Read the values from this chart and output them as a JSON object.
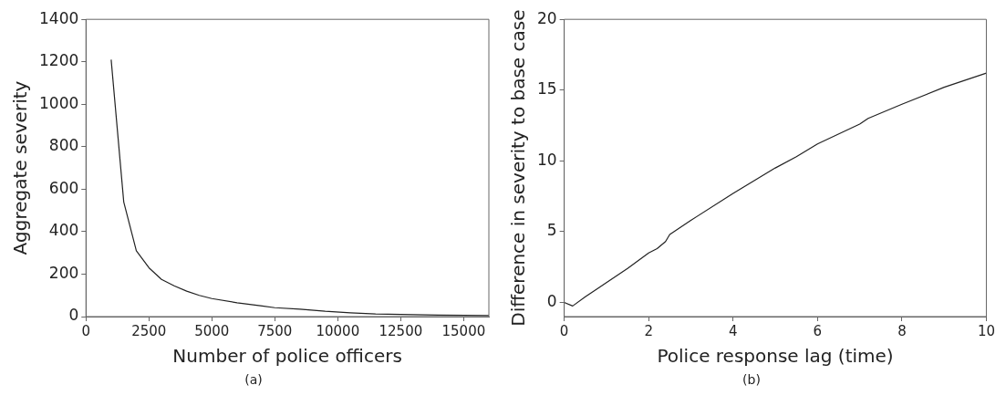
{
  "chart_data": [
    {
      "type": "line",
      "xlabel": "Number of police officers",
      "ylabel": "Aggregate severity",
      "annotations": [
        "(a)"
      ],
      "xlim": [
        0,
        16000
      ],
      "ylim": [
        0,
        1400
      ],
      "xticks": [
        0,
        2500,
        5000,
        7500,
        10000,
        12500,
        15000
      ],
      "yticks": [
        0,
        200,
        400,
        600,
        800,
        1000,
        1200,
        1400
      ],
      "grid": false,
      "legend": false,
      "series": [
        {
          "color": "#222222",
          "x": [
            1000,
            1500,
            2000,
            2500,
            3000,
            3500,
            4000,
            4500,
            5000,
            6000,
            7000,
            7500,
            8500,
            9500,
            10500,
            11500,
            12500,
            14000,
            16000
          ],
          "values": [
            1210,
            540,
            310,
            230,
            175,
            145,
            120,
            100,
            85,
            65,
            50,
            42,
            35,
            25,
            18,
            12,
            10,
            7,
            5
          ]
        }
      ]
    },
    {
      "type": "line",
      "xlabel": "Police response lag (time)",
      "ylabel": "Difference in severity to base case",
      "annotations": [
        "(b)"
      ],
      "xlim": [
        0,
        10
      ],
      "ylim": [
        -1,
        20
      ],
      "xticks": [
        0,
        2,
        4,
        6,
        8,
        10
      ],
      "yticks": [
        0,
        5,
        10,
        15,
        20
      ],
      "grid": false,
      "legend": false,
      "series": [
        {
          "color": "#222222",
          "x": [
            0,
            0.2,
            0.5,
            0.8,
            1,
            1.5,
            2,
            2.2,
            2.4,
            2.5,
            3,
            4,
            5,
            5.5,
            6,
            7,
            7.2,
            8,
            9,
            10
          ],
          "values": [
            0,
            -0.25,
            0.4,
            1.0,
            1.4,
            2.4,
            3.5,
            3.8,
            4.3,
            4.8,
            5.8,
            7.7,
            9.5,
            10.3,
            11.2,
            12.6,
            13,
            14,
            15.2,
            16.2
          ]
        }
      ]
    }
  ]
}
